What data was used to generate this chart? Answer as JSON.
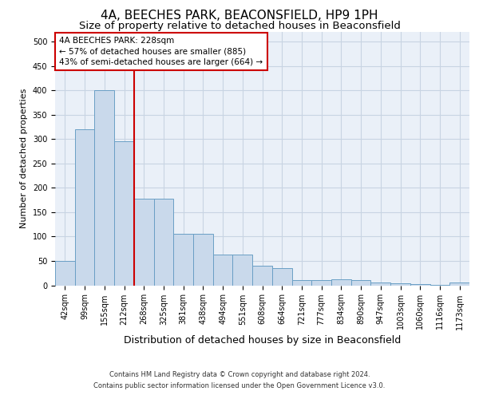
{
  "title1": "4A, BEECHES PARK, BEACONSFIELD, HP9 1PH",
  "title2": "Size of property relative to detached houses in Beaconsfield",
  "xlabel": "Distribution of detached houses by size in Beaconsfield",
  "ylabel": "Number of detached properties",
  "footer1": "Contains HM Land Registry data © Crown copyright and database right 2024.",
  "footer2": "Contains public sector information licensed under the Open Government Licence v3.0.",
  "bin_labels": [
    "42sqm",
    "99sqm",
    "155sqm",
    "212sqm",
    "268sqm",
    "325sqm",
    "381sqm",
    "438sqm",
    "494sqm",
    "551sqm",
    "608sqm",
    "664sqm",
    "721sqm",
    "777sqm",
    "834sqm",
    "890sqm",
    "947sqm",
    "1003sqm",
    "1060sqm",
    "1116sqm",
    "1173sqm"
  ],
  "bar_values": [
    50,
    320,
    400,
    295,
    178,
    178,
    105,
    105,
    63,
    63,
    40,
    36,
    10,
    10,
    13,
    10,
    5,
    4,
    2,
    1,
    5
  ],
  "bar_color": "#c9d9eb",
  "bar_edge_color": "#6a9fc5",
  "annotation_text": "4A BEECHES PARK: 228sqm\n← 57% of detached houses are smaller (885)\n43% of semi-detached houses are larger (664) →",
  "annotation_box_color": "#ffffff",
  "annotation_box_edge_color": "#cc0000",
  "vline_x": 3.5,
  "vline_color": "#cc0000",
  "ylim": [
    0,
    520
  ],
  "yticks": [
    0,
    50,
    100,
    150,
    200,
    250,
    300,
    350,
    400,
    450,
    500
  ],
  "grid_color": "#c8d4e3",
  "bg_color": "#eaf0f8",
  "title1_fontsize": 11,
  "title2_fontsize": 9.5,
  "ylabel_fontsize": 8,
  "xlabel_fontsize": 9,
  "tick_fontsize": 7,
  "footer_fontsize": 6,
  "annotation_fontsize": 7.5
}
